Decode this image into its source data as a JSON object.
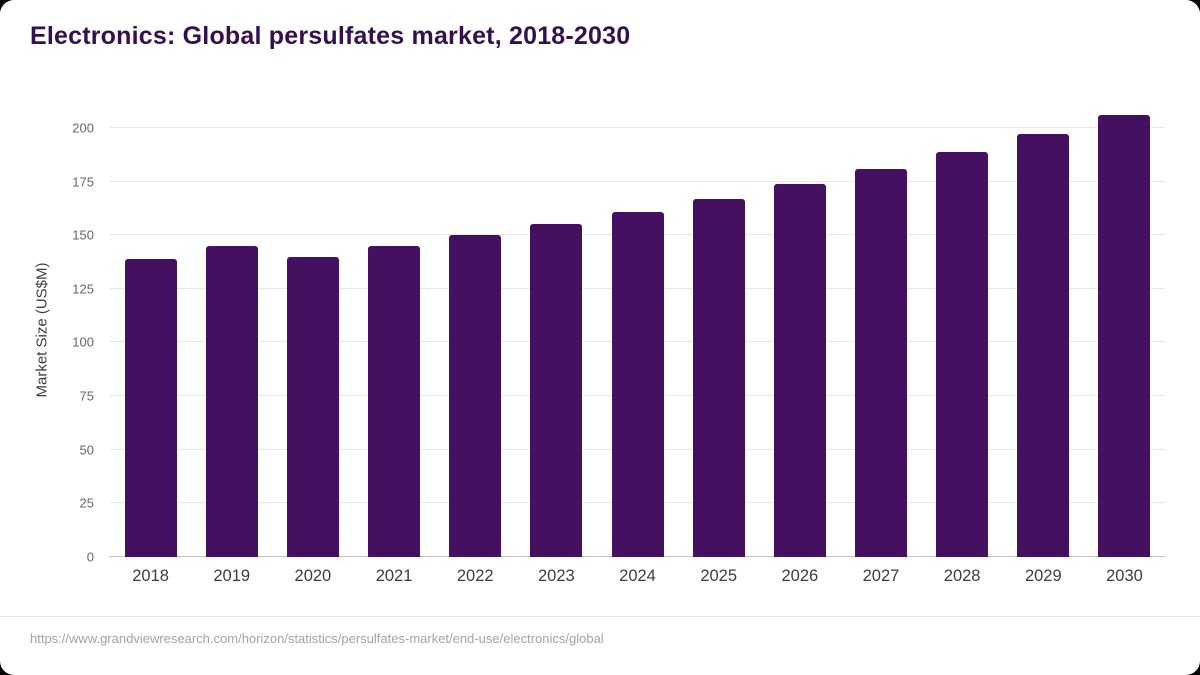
{
  "title": "Electronics: Global persulfates market, 2018-2030",
  "source": "https://www.grandviewresearch.com/horizon/statistics/persulfates-market/end-use/electronics/global",
  "colors": {
    "bar": "#45105f",
    "title": "#36104e",
    "background": "#ffffff"
  },
  "chart_data": {
    "type": "bar",
    "title": "Electronics: Global persulfates market, 2018-2030",
    "categories": [
      "2018",
      "2019",
      "2020",
      "2021",
      "2022",
      "2023",
      "2024",
      "2025",
      "2026",
      "2027",
      "2028",
      "2029",
      "2030"
    ],
    "values": [
      139,
      145,
      140,
      145,
      150,
      155,
      161,
      167,
      174,
      181,
      189,
      197,
      206
    ],
    "xlabel": "",
    "ylabel": "Market Size (US$M)",
    "ylim": [
      0,
      213
    ],
    "yticks": [
      0,
      25,
      50,
      75,
      100,
      125,
      150,
      175,
      200
    ],
    "grid": true,
    "legend_position": "none",
    "bar_color": "#45105f"
  }
}
